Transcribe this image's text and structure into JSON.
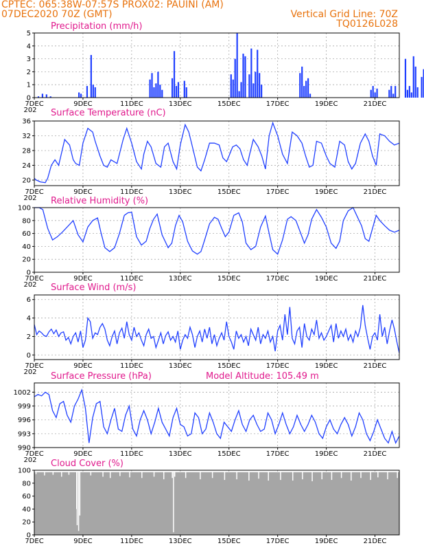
{
  "header": {
    "line1_left": "CPTEC:  065:38W-07:57S   PROX02: PAUINI (AM)",
    "line2_left": "07DEC2020 70Z (GMT)",
    "line2_right": "Vertical Grid Line: 70Z",
    "line3_right": "TQ0126L028"
  },
  "colors": {
    "header": "#e8720c",
    "title": "#e0188c",
    "series": "#1f3fff",
    "cloud": "#a6a6a6"
  },
  "x_axis": {
    "days": 15,
    "labels": [
      {
        "day": 0,
        "text": "7DEC"
      },
      {
        "day": 2,
        "text": "9DEC"
      },
      {
        "day": 4,
        "text": "11DEC"
      },
      {
        "day": 6,
        "text": "13DEC"
      },
      {
        "day": 8,
        "text": "15DEC"
      },
      {
        "day": 10,
        "text": "17DEC"
      },
      {
        "day": 12,
        "text": "19DEC"
      },
      {
        "day": 14,
        "text": "21DEC"
      }
    ],
    "year_cut": "202"
  },
  "chart_data": [
    {
      "id": "precipitation",
      "type": "bar",
      "title": "Precipitation (mm/h)",
      "ylim": [
        0,
        5
      ],
      "yticks": [
        0,
        1,
        2,
        3,
        4,
        5
      ],
      "grid": true,
      "x_hours": [
        4,
        8,
        12,
        16,
        44,
        46,
        52,
        56,
        58,
        60,
        114,
        116,
        118,
        120,
        122,
        124,
        126,
        136,
        138,
        140,
        142,
        148,
        150,
        194,
        196,
        198,
        200,
        202,
        204,
        206,
        208,
        212,
        214,
        216,
        218,
        220,
        222,
        224,
        262,
        264,
        266,
        268,
        270,
        272,
        332,
        334,
        336,
        338,
        350,
        352,
        354,
        356,
        366,
        368,
        370,
        372,
        374,
        376,
        378,
        382,
        384,
        386,
        432,
        434,
        438,
        442,
        446,
        448,
        452,
        454,
        456,
        458,
        460,
        462,
        466,
        468,
        476,
        480,
        482,
        484,
        486,
        488,
        490,
        492,
        494,
        496,
        498,
        500,
        506,
        508,
        510,
        512,
        514,
        516,
        520,
        522,
        524,
        526,
        528,
        530,
        534,
        536,
        538,
        540,
        542,
        544,
        546
      ],
      "values": [
        0.1,
        0.3,
        0.25,
        0.1,
        0.4,
        0.3,
        0.9,
        3.3,
        1.0,
        0.8,
        1.4,
        1.9,
        0.8,
        1.1,
        2.0,
        1.0,
        0.6,
        1.5,
        3.6,
        0.9,
        1.2,
        1.3,
        0.8,
        1.8,
        1.4,
        3.0,
        5.0,
        0.5,
        1.2,
        3.4,
        3.2,
        1.8,
        3.8,
        1.1,
        2.0,
        3.7,
        1.9,
        1.0,
        1.9,
        2.4,
        0.9,
        1.3,
        1.5,
        0.3,
        0.6,
        0.9,
        0.4,
        0.7,
        0.6,
        0.9,
        0.3,
        0.9,
        3.0,
        0.6,
        0.9,
        0.4,
        3.2,
        2.4,
        0.8,
        1.6,
        2.2,
        1.9,
        0.6,
        0.4,
        0.6,
        0.8,
        0.9,
        0.7,
        1.3,
        0.6,
        0.6,
        0.6,
        0.9,
        1.6,
        3.0,
        2.1,
        0.7,
        1.3,
        2.6,
        1.9,
        1.4,
        0.7,
        0.9,
        0.2,
        4.5,
        1.6,
        0.6,
        0.8,
        0.6,
        1.4,
        0.3,
        1.8,
        0.5,
        1.5,
        0.6,
        0.7,
        2.0,
        1.1,
        2.2,
        1.2,
        0.5,
        1.8,
        0.9,
        0.4,
        0.9,
        0.2,
        0.7
      ]
    },
    {
      "id": "temperature",
      "type": "line",
      "title": "Surface Temperature (nC)",
      "ylim": [
        18.5,
        36
      ],
      "yticks": [
        20,
        24,
        28,
        32,
        36
      ],
      "grid": true,
      "x_day": [
        0,
        0.08,
        0.25,
        0.45,
        0.55,
        0.7,
        0.85,
        1.0,
        1.25,
        1.45,
        1.6,
        1.7,
        1.85,
        2.0,
        2.2,
        2.4,
        2.5,
        2.7,
        2.85,
        3.0,
        3.15,
        3.4,
        3.65,
        3.8,
        4.0,
        4.2,
        4.4,
        4.5,
        4.65,
        4.8,
        5.0,
        5.2,
        5.35,
        5.5,
        5.7,
        5.85,
        6.0,
        6.2,
        6.35,
        6.5,
        6.7,
        6.85,
        7.0,
        7.2,
        7.4,
        7.6,
        7.75,
        7.9,
        8.0,
        8.15,
        8.3,
        8.45,
        8.6,
        8.75,
        8.85,
        9.0,
        9.2,
        9.35,
        9.5,
        9.65,
        9.8,
        10.0,
        10.2,
        10.4,
        10.6,
        10.8,
        11.0,
        11.15,
        11.3,
        11.45,
        11.6,
        11.8,
        12.0,
        12.15,
        12.35,
        12.55,
        12.75,
        12.9,
        13.05,
        13.2,
        13.4,
        13.6,
        13.75,
        13.9,
        14.05,
        14.2,
        14.4,
        14.6,
        14.8,
        15.0
      ],
      "values": [
        20.5,
        20.0,
        19.5,
        19.3,
        20.5,
        24.0,
        25.5,
        24.0,
        31.0,
        29.5,
        25.5,
        24.5,
        24.0,
        30.0,
        34.0,
        33.0,
        30.5,
        26.5,
        24.0,
        23.5,
        25.5,
        24.5,
        31.0,
        34.0,
        30.0,
        25.0,
        23.0,
        27.0,
        30.5,
        29.0,
        24.5,
        23.5,
        29.0,
        30.0,
        25.0,
        23.0,
        29.5,
        35.0,
        33.0,
        29.0,
        23.5,
        22.5,
        25.5,
        30.0,
        30.0,
        29.5,
        26.0,
        25.0,
        26.5,
        29.0,
        29.5,
        28.5,
        25.5,
        24.0,
        27.0,
        31.0,
        29.0,
        26.5,
        23.0,
        32.0,
        35.5,
        32.0,
        27.0,
        24.5,
        33.0,
        32.0,
        30.0,
        26.5,
        23.5,
        24.0,
        30.5,
        30.0,
        26.5,
        24.5,
        23.5,
        30.5,
        29.5,
        25.0,
        23.0,
        24.5,
        30.0,
        32.5,
        30.5,
        26.5,
        24.0,
        32.5,
        32.0,
        30.5,
        29.5,
        30.0
      ]
    },
    {
      "id": "humidity",
      "type": "line",
      "title": "Relative Humidity (%)",
      "ylim": [
        0,
        100
      ],
      "yticks": [
        0,
        20,
        40,
        60,
        80,
        100
      ],
      "grid": true,
      "x_day": [
        0,
        0.2,
        0.35,
        0.55,
        0.75,
        0.95,
        1.15,
        1.4,
        1.6,
        1.8,
        2.0,
        2.2,
        2.4,
        2.6,
        2.75,
        2.9,
        3.1,
        3.3,
        3.5,
        3.7,
        3.85,
        4.0,
        4.2,
        4.4,
        4.6,
        4.75,
        4.9,
        5.05,
        5.25,
        5.5,
        5.65,
        5.8,
        5.95,
        6.1,
        6.3,
        6.5,
        6.7,
        6.85,
        7.0,
        7.2,
        7.4,
        7.55,
        7.7,
        7.85,
        8.0,
        8.2,
        8.4,
        8.55,
        8.7,
        8.9,
        9.1,
        9.3,
        9.5,
        9.65,
        9.8,
        10.0,
        10.2,
        10.4,
        10.55,
        10.75,
        10.95,
        11.1,
        11.25,
        11.4,
        11.6,
        11.8,
        12.0,
        12.2,
        12.4,
        12.55,
        12.7,
        12.9,
        13.1,
        13.25,
        13.45,
        13.6,
        13.75,
        13.9,
        14.05,
        14.2,
        14.4,
        14.6,
        14.8,
        15.0
      ],
      "values": [
        100,
        100,
        97,
        68,
        50,
        55,
        62,
        72,
        80,
        58,
        47,
        70,
        80,
        84,
        60,
        38,
        32,
        38,
        60,
        88,
        92,
        93,
        55,
        42,
        48,
        68,
        82,
        90,
        58,
        38,
        45,
        72,
        88,
        78,
        48,
        33,
        28,
        32,
        50,
        75,
        85,
        82,
        68,
        55,
        62,
        88,
        92,
        78,
        45,
        35,
        40,
        70,
        87,
        60,
        35,
        28,
        50,
        82,
        86,
        80,
        60,
        45,
        58,
        82,
        97,
        85,
        70,
        45,
        37,
        48,
        80,
        95,
        100,
        88,
        72,
        52,
        48,
        68,
        88,
        80,
        72,
        65,
        62,
        65
      ]
    },
    {
      "id": "wind",
      "type": "line",
      "title": "Surface Wind (m/s)",
      "ylim": [
        -0.5,
        6.5
      ],
      "yticks": [
        0,
        2,
        4,
        6
      ],
      "grid": true,
      "x_day": [
        0,
        0.1,
        0.2,
        0.3,
        0.4,
        0.5,
        0.6,
        0.7,
        0.8,
        0.9,
        1.0,
        1.1,
        1.2,
        1.3,
        1.4,
        1.5,
        1.6,
        1.7,
        1.8,
        1.9,
        2.0,
        2.1,
        2.2,
        2.3,
        2.4,
        2.5,
        2.6,
        2.7,
        2.8,
        2.9,
        3.0,
        3.1,
        3.2,
        3.3,
        3.4,
        3.5,
        3.6,
        3.7,
        3.8,
        3.9,
        4.0,
        4.1,
        4.2,
        4.3,
        4.4,
        4.5,
        4.6,
        4.7,
        4.8,
        4.9,
        5.0,
        5.1,
        5.2,
        5.3,
        5.4,
        5.5,
        5.6,
        5.7,
        5.8,
        5.9,
        6.0,
        6.1,
        6.2,
        6.3,
        6.4,
        6.5,
        6.6,
        6.7,
        6.8,
        6.9,
        7.0,
        7.1,
        7.2,
        7.3,
        7.4,
        7.5,
        7.6,
        7.7,
        7.8,
        7.9,
        8.0,
        8.1,
        8.2,
        8.3,
        8.4,
        8.5,
        8.6,
        8.7,
        8.8,
        8.9,
        9.0,
        9.1,
        9.2,
        9.3,
        9.4,
        9.5,
        9.6,
        9.7,
        9.8,
        9.9,
        10.0,
        10.1,
        10.2,
        10.3,
        10.4,
        10.5,
        10.6,
        10.7,
        10.8,
        10.9,
        11.0,
        11.1,
        11.2,
        11.3,
        11.4,
        11.5,
        11.6,
        11.7,
        11.8,
        11.9,
        12.0,
        12.1,
        12.2,
        12.3,
        12.4,
        12.5,
        12.6,
        12.7,
        12.8,
        12.9,
        13.0,
        13.1,
        13.2,
        13.3,
        13.4,
        13.5,
        13.6,
        13.7,
        13.8,
        13.9,
        14.0,
        14.1,
        14.2,
        14.3,
        14.4,
        14.5,
        14.6,
        14.7,
        14.8,
        14.9,
        15.0
      ],
      "values": [
        3.3,
        2.2,
        2.6,
        2.4,
        2.1,
        2.0,
        2.5,
        2.8,
        2.3,
        2.7,
        2.0,
        2.4,
        2.5,
        1.6,
        1.9,
        1.2,
        2.0,
        2.4,
        1.4,
        2.6,
        0.8,
        1.6,
        4.0,
        3.6,
        1.8,
        2.4,
        2.2,
        3.0,
        3.4,
        2.8,
        1.6,
        1.0,
        2.0,
        2.6,
        1.2,
        2.4,
        2.9,
        1.8,
        3.6,
        2.2,
        1.6,
        3.0,
        2.0,
        2.4,
        1.6,
        1.0,
        2.2,
        2.8,
        1.8,
        2.0,
        0.8,
        1.6,
        2.4,
        1.2,
        2.1,
        2.5,
        1.6,
        2.0,
        1.4,
        2.6,
        0.6,
        1.6,
        2.2,
        1.8,
        3.0,
        2.2,
        0.8,
        2.0,
        2.6,
        1.4,
        2.8,
        1.8,
        3.0,
        1.2,
        2.2,
        1.0,
        1.8,
        2.4,
        1.6,
        3.6,
        2.0,
        1.4,
        0.6,
        2.6,
        1.8,
        2.2,
        1.4,
        2.0,
        1.0,
        2.8,
        2.2,
        1.6,
        3.0,
        1.2,
        2.2,
        1.8,
        2.6,
        1.4,
        2.0,
        0.4,
        2.6,
        3.2,
        1.6,
        4.4,
        2.2,
        5.2,
        1.8,
        1.2,
        2.6,
        3.0,
        0.8,
        3.4,
        2.0,
        1.6,
        2.8,
        2.2,
        3.8,
        1.8,
        2.4,
        1.6,
        2.0,
        2.6,
        3.2,
        1.4,
        3.4,
        1.8,
        2.6,
        2.0,
        2.8,
        1.6,
        2.2,
        1.4,
        2.6,
        2.0,
        3.0,
        5.4,
        3.2,
        1.8,
        0.6,
        2.0,
        2.4,
        1.6,
        4.4,
        2.0,
        3.0,
        1.2,
        2.6,
        3.8,
        2.8,
        1.4,
        0.2
      ]
    },
    {
      "id": "pressure",
      "type": "line",
      "title": "Surface Pressure (hPa)",
      "annotation": "Model Altitude: 105.49 m",
      "ylim": [
        990,
        1004
      ],
      "yticks": [
        990,
        993,
        996,
        999,
        1002
      ],
      "grid": true,
      "x_day": [
        0,
        0.15,
        0.3,
        0.45,
        0.6,
        0.75,
        0.9,
        1.05,
        1.2,
        1.35,
        1.5,
        1.65,
        1.8,
        1.95,
        2.1,
        2.25,
        2.4,
        2.55,
        2.7,
        2.85,
        3.0,
        3.15,
        3.3,
        3.45,
        3.6,
        3.75,
        3.9,
        4.05,
        4.2,
        4.35,
        4.5,
        4.65,
        4.8,
        4.95,
        5.1,
        5.25,
        5.4,
        5.55,
        5.7,
        5.85,
        6.0,
        6.15,
        6.3,
        6.45,
        6.6,
        6.75,
        6.9,
        7.05,
        7.2,
        7.35,
        7.5,
        7.65,
        7.8,
        7.95,
        8.1,
        8.25,
        8.4,
        8.55,
        8.7,
        8.85,
        9.0,
        9.15,
        9.3,
        9.45,
        9.6,
        9.75,
        9.9,
        10.05,
        10.2,
        10.35,
        10.5,
        10.65,
        10.8,
        10.95,
        11.1,
        11.25,
        11.4,
        11.55,
        11.7,
        11.85,
        12.0,
        12.15,
        12.3,
        12.45,
        12.6,
        12.75,
        12.9,
        13.05,
        13.2,
        13.35,
        13.5,
        13.65,
        13.8,
        13.95,
        14.1,
        14.25,
        14.4,
        14.55,
        14.7,
        14.85,
        15.0
      ],
      "values": [
        1001.0,
        1001.5,
        1001.2,
        1002.0,
        1001.5,
        998.0,
        996.5,
        999.5,
        1000.0,
        997.0,
        995.5,
        999.0,
        1000.5,
        1002.5,
        998.5,
        991.0,
        996.5,
        999.5,
        1000.0,
        994.5,
        993.0,
        996.0,
        998.5,
        994.0,
        993.5,
        997.0,
        999.0,
        994.0,
        992.5,
        996.0,
        998.0,
        996.0,
        993.0,
        995.5,
        998.5,
        995.5,
        994.0,
        992.5,
        996.5,
        998.5,
        995.0,
        994.5,
        992.5,
        993.0,
        997.5,
        996.5,
        993.0,
        994.0,
        997.5,
        995.5,
        993.0,
        992.0,
        995.5,
        994.5,
        993.5,
        996.0,
        998.0,
        995.0,
        993.5,
        996.0,
        997.0,
        995.0,
        993.5,
        994.0,
        997.5,
        996.0,
        993.0,
        995.0,
        997.5,
        995.0,
        993.0,
        994.5,
        997.0,
        995.0,
        993.5,
        995.0,
        997.0,
        995.5,
        993.0,
        992.0,
        994.5,
        996.0,
        994.0,
        993.0,
        995.0,
        996.5,
        995.0,
        992.5,
        994.5,
        997.5,
        996.0,
        993.0,
        991.5,
        993.5,
        996.0,
        994.0,
        992.0,
        991.0,
        993.5,
        991.0,
        992.5
      ]
    },
    {
      "id": "cloud",
      "type": "bar",
      "title": "Cloud Cover (%)",
      "ylim": [
        0,
        100
      ],
      "yticks": [
        0,
        20,
        40,
        60,
        80,
        100
      ],
      "grid": true,
      "baseline": 97,
      "dips": [
        {
          "day": 0.05,
          "value": 94
        },
        {
          "day": 0.4,
          "value": 92
        },
        {
          "day": 0.75,
          "value": 93
        },
        {
          "day": 1.1,
          "value": 90
        },
        {
          "day": 1.4,
          "value": 93
        },
        {
          "day": 1.72,
          "value": 40
        },
        {
          "day": 1.74,
          "value": 15
        },
        {
          "day": 1.8,
          "value": 6
        },
        {
          "day": 1.85,
          "value": 30
        },
        {
          "day": 2.3,
          "value": 92
        },
        {
          "day": 2.8,
          "value": 90
        },
        {
          "day": 3.1,
          "value": 88
        },
        {
          "day": 3.5,
          "value": 91
        },
        {
          "day": 3.9,
          "value": 89
        },
        {
          "day": 4.4,
          "value": 88
        },
        {
          "day": 4.9,
          "value": 90
        },
        {
          "day": 5.3,
          "value": 86
        },
        {
          "day": 5.65,
          "value": 88
        },
        {
          "day": 5.7,
          "value": 4
        },
        {
          "day": 5.75,
          "value": 90
        },
        {
          "day": 6.2,
          "value": 88
        },
        {
          "day": 6.8,
          "value": 86
        },
        {
          "day": 7.3,
          "value": 88
        },
        {
          "day": 7.8,
          "value": 85
        },
        {
          "day": 8.3,
          "value": 86
        },
        {
          "day": 8.8,
          "value": 84
        },
        {
          "day": 9.2,
          "value": 87
        },
        {
          "day": 9.6,
          "value": 84
        },
        {
          "day": 10.1,
          "value": 85
        },
        {
          "day": 10.6,
          "value": 84
        },
        {
          "day": 11.0,
          "value": 86
        },
        {
          "day": 11.4,
          "value": 83
        },
        {
          "day": 11.8,
          "value": 86
        },
        {
          "day": 12.2,
          "value": 85
        },
        {
          "day": 12.6,
          "value": 88
        },
        {
          "day": 13.0,
          "value": 84
        },
        {
          "day": 13.4,
          "value": 88
        },
        {
          "day": 13.8,
          "value": 85
        },
        {
          "day": 14.1,
          "value": 89
        },
        {
          "day": 14.5,
          "value": 86
        },
        {
          "day": 14.9,
          "value": 88
        }
      ]
    }
  ]
}
